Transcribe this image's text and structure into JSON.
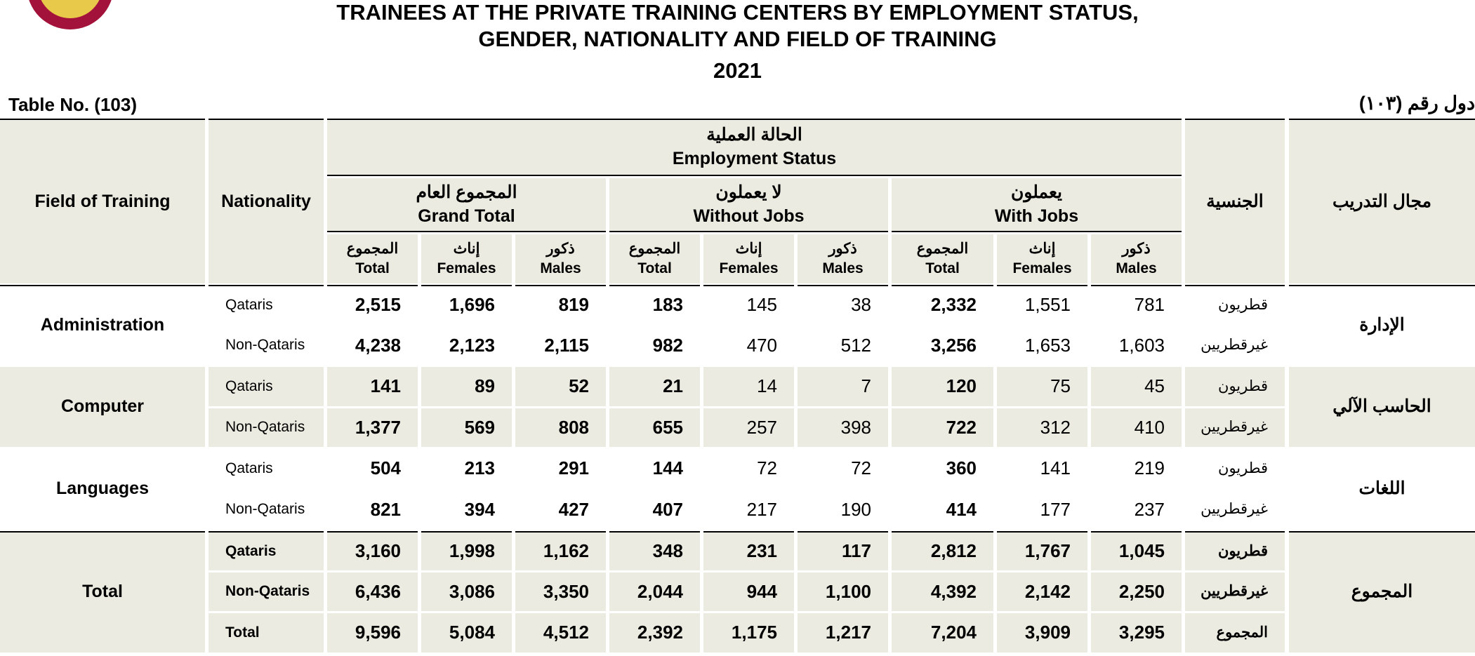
{
  "header": {
    "title_line1": "TRAINEES AT THE PRIVATE TRAINING CENTERS BY EMPLOYMENT STATUS,",
    "title_line2": "GENDER, NATIONALITY AND FIELD OF TRAINING",
    "year": "2021",
    "table_no_en": "Table No. (103)",
    "table_no_ar": "دول رقم (١٠٣)"
  },
  "table": {
    "field_en": "Field of Training",
    "nationality_en": "Nationality",
    "nationality_ar": "الجنسية",
    "field_ar": "مجال التدريب",
    "status_ar": "الحالة العملية",
    "status_en": "Employment Status",
    "groups": [
      {
        "ar": "المجموع العام",
        "en": "Grand Total"
      },
      {
        "ar": "لا يعملون",
        "en": "Without Jobs"
      },
      {
        "ar": "يعملون",
        "en": "With Jobs"
      }
    ],
    "sub": [
      {
        "ar": "المجموع",
        "en": "Total"
      },
      {
        "ar": "إناث",
        "en": "Females"
      },
      {
        "ar": "ذكور",
        "en": "Males"
      }
    ],
    "sections": [
      {
        "en": "Administration",
        "ar": "الإدارة",
        "rows": [
          {
            "en": "Qataris",
            "ar": "قطريون",
            "values": [
              "2,515",
              "1,696",
              "819",
              "183",
              "145",
              "38",
              "2,332",
              "1,551",
              "781"
            ]
          },
          {
            "en": "Non-Qataris",
            "ar": "غيرقطريين",
            "values": [
              "4,238",
              "2,123",
              "2,115",
              "982",
              "470",
              "512",
              "3,256",
              "1,653",
              "1,603"
            ]
          }
        ]
      },
      {
        "en": "Computer",
        "ar": "الحاسب الآلي",
        "rows": [
          {
            "en": "Qataris",
            "ar": "قطريون",
            "values": [
              "141",
              "89",
              "52",
              "21",
              "14",
              "7",
              "120",
              "75",
              "45"
            ]
          },
          {
            "en": "Non-Qataris",
            "ar": "غيرقطريين",
            "values": [
              "1,377",
              "569",
              "808",
              "655",
              "257",
              "398",
              "722",
              "312",
              "410"
            ]
          }
        ]
      },
      {
        "en": "Languages",
        "ar": "اللغات",
        "rows": [
          {
            "en": "Qataris",
            "ar": "قطريون",
            "values": [
              "504",
              "213",
              "291",
              "144",
              "72",
              "72",
              "360",
              "141",
              "219"
            ]
          },
          {
            "en": "Non-Qataris",
            "ar": "غيرقطريين",
            "values": [
              "821",
              "394",
              "427",
              "407",
              "217",
              "190",
              "414",
              "177",
              "237"
            ]
          }
        ]
      },
      {
        "en": "Total",
        "ar": "المجموع",
        "rows": [
          {
            "en": "Qataris",
            "ar": "قطريون",
            "values": [
              "3,160",
              "1,998",
              "1,162",
              "348",
              "231",
              "117",
              "2,812",
              "1,767",
              "1,045"
            ]
          },
          {
            "en": "Non-Qataris",
            "ar": "غيرقطريين",
            "values": [
              "6,436",
              "3,086",
              "3,350",
              "2,044",
              "944",
              "1,100",
              "4,392",
              "2,142",
              "2,250"
            ]
          },
          {
            "en": "Total",
            "ar": "المجموع",
            "values": [
              "9,596",
              "5,084",
              "4,512",
              "2,392",
              "1,175",
              "1,217",
              "7,204",
              "3,909",
              "3,295"
            ]
          }
        ]
      }
    ]
  }
}
